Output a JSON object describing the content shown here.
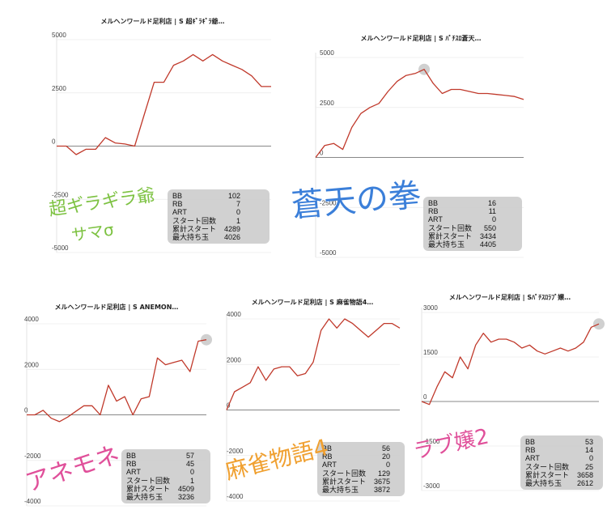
{
  "chart_data": [
    {
      "type": "line",
      "title": "メルヘンワールド足利店 | S 超ｷﾞﾗｷﾞﾗ爺…",
      "yticks": [
        "5000",
        "2500",
        "0",
        "-2500",
        "-5000"
      ],
      "ylim": [
        -5000,
        5000
      ],
      "x": [
        0,
        1,
        2,
        3,
        4,
        5,
        6,
        7,
        8,
        9,
        10,
        11,
        12,
        13,
        14,
        15,
        16,
        17,
        18,
        19,
        20,
        21,
        22
      ],
      "values": [
        0,
        0,
        -400,
        -150,
        -150,
        400,
        150,
        100,
        0,
        1500,
        3000,
        3000,
        3800,
        4000,
        4300,
        4000,
        4300,
        4000,
        3800,
        3600,
        3300,
        2800,
        2800
      ],
      "color": "#c0392b",
      "stats": [
        {
          "label": "BB",
          "value": "102"
        },
        {
          "label": "RB",
          "value": "7"
        },
        {
          "label": "ART",
          "value": "0"
        },
        {
          "label": "スタート回数",
          "value": "1"
        },
        {
          "label": "累計スタート",
          "value": "4289"
        },
        {
          "label": "最大持ち玉",
          "value": "4026"
        }
      ],
      "overlay_text": [
        "超ギラギラ爺",
        "サマσ"
      ],
      "overlay_color": "#7dc242"
    },
    {
      "type": "line",
      "title": "メルヘンワールド足利店 | S ﾊﾟﾁｽﾛ蒼天…",
      "yticks": [
        "5000",
        "2500",
        "0",
        "-2500",
        "-5000"
      ],
      "ylim": [
        -5000,
        5000
      ],
      "x": [
        0,
        1,
        2,
        3,
        4,
        5,
        6,
        7,
        8,
        9,
        10,
        11,
        12,
        13,
        14,
        15,
        16,
        17,
        18,
        19,
        20,
        21,
        22,
        23
      ],
      "values": [
        0,
        600,
        700,
        400,
        1500,
        2200,
        2500,
        2700,
        3300,
        3800,
        4100,
        4200,
        4405,
        3700,
        3200,
        3400,
        3400,
        3300,
        3200,
        3200,
        3150,
        3100,
        3050,
        2900
      ],
      "color": "#c0392b",
      "highlight_index": 12,
      "stats": [
        {
          "label": "BB",
          "value": "16"
        },
        {
          "label": "RB",
          "value": "11"
        },
        {
          "label": "ART",
          "value": "0"
        },
        {
          "label": "スタート回数",
          "value": "550"
        },
        {
          "label": "累計スタート",
          "value": "3434"
        },
        {
          "label": "最大持ち玉",
          "value": "4405"
        }
      ],
      "overlay_text": [
        "蒼天の拳"
      ],
      "overlay_color": "#3b7fd9"
    },
    {
      "type": "line",
      "title": "メルヘンワールド足利店 | S ANEMON…",
      "yticks": [
        "4000",
        "2000",
        "0",
        "-2000",
        "-4000"
      ],
      "ylim": [
        -4000,
        4000
      ],
      "x": [
        0,
        1,
        2,
        3,
        4,
        5,
        6,
        7,
        8,
        9,
        10,
        11,
        12,
        13,
        14,
        15,
        16,
        17,
        18,
        19,
        20,
        21,
        22
      ],
      "values": [
        0,
        0,
        200,
        -150,
        -300,
        -100,
        150,
        400,
        400,
        0,
        1300,
        600,
        800,
        0,
        700,
        800,
        2500,
        2200,
        2300,
        2400,
        1900,
        3236,
        3300
      ],
      "color": "#c0392b",
      "highlight_index": 22,
      "stats": [
        {
          "label": "BB",
          "value": "57"
        },
        {
          "label": "RB",
          "value": "45"
        },
        {
          "label": "ART",
          "value": "0"
        },
        {
          "label": "スタート回数",
          "value": "1"
        },
        {
          "label": "累計スタート",
          "value": "4509"
        },
        {
          "label": "最大持ち玉",
          "value": "3236"
        }
      ],
      "overlay_text": [
        "アネモネ"
      ],
      "overlay_color": "#e0509a"
    },
    {
      "type": "line",
      "title": "メルヘンワールド足利店 | S 麻雀物語4…",
      "yticks": [
        "4000",
        "2000",
        "0",
        "-2000",
        "-4000"
      ],
      "ylim": [
        -4000,
        4000
      ],
      "x": [
        0,
        1,
        2,
        3,
        4,
        5,
        6,
        7,
        8,
        9,
        10,
        11,
        12,
        13,
        14,
        15,
        16,
        17,
        18,
        19,
        20,
        21,
        22
      ],
      "values": [
        0,
        800,
        1000,
        1200,
        1900,
        1300,
        1800,
        1900,
        1900,
        1500,
        1600,
        2100,
        3500,
        4000,
        3600,
        4000,
        3800,
        3500,
        3200,
        3500,
        3800,
        3800,
        3600
      ],
      "color": "#c0392b",
      "stats": [
        {
          "label": "BB",
          "value": "56"
        },
        {
          "label": "RB",
          "value": "20"
        },
        {
          "label": "ART",
          "value": "0"
        },
        {
          "label": "スタート回数",
          "value": "129"
        },
        {
          "label": "累計スタート",
          "value": "3675"
        },
        {
          "label": "最大持ち玉",
          "value": "3872"
        }
      ],
      "overlay_text": [
        "麻雀物語4"
      ],
      "overlay_color": "#f0a030"
    },
    {
      "type": "line",
      "title": "メルヘンワールド足利店 | Sﾊﾟﾁｽﾛﾗﾌﾞ嬢…",
      "yticks": [
        "3000",
        "1500",
        "0",
        "-1500",
        "-3000"
      ],
      "ylim": [
        -3000,
        3000
      ],
      "x": [
        0,
        1,
        2,
        3,
        4,
        5,
        6,
        7,
        8,
        9,
        10,
        11,
        12,
        13,
        14,
        15,
        16,
        17,
        18,
        19,
        20,
        21,
        22,
        23
      ],
      "values": [
        0,
        -100,
        500,
        1000,
        800,
        1500,
        1100,
        1900,
        2300,
        2000,
        2100,
        2100,
        2000,
        1800,
        1900,
        1700,
        1600,
        1700,
        1800,
        1700,
        1800,
        2000,
        2500,
        2612
      ],
      "color": "#c0392b",
      "highlight_index": 23,
      "stats": [
        {
          "label": "BB",
          "value": "53"
        },
        {
          "label": "RB",
          "value": "14"
        },
        {
          "label": "ART",
          "value": "0"
        },
        {
          "label": "スタート回数",
          "value": "25"
        },
        {
          "label": "累計スタート",
          "value": "3658"
        },
        {
          "label": "最大持ち玉",
          "value": "2612"
        }
      ],
      "overlay_text": [
        "ラブ嬢2"
      ],
      "overlay_color": "#e0509a"
    }
  ]
}
